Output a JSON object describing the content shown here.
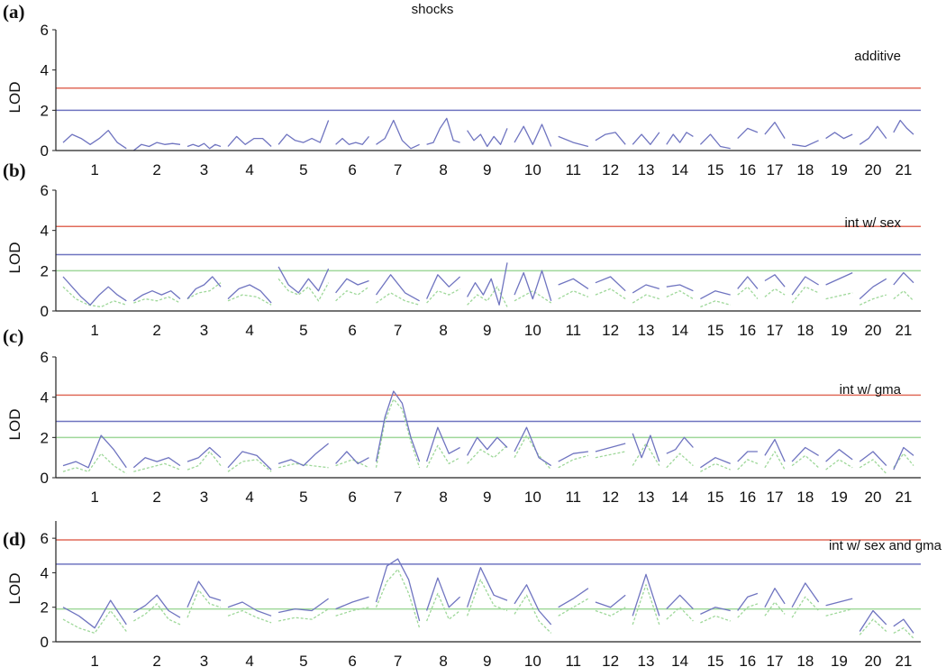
{
  "title": "shocks",
  "colors": {
    "red": "#e06b5a",
    "blue": "#6f74c0",
    "green": "#9fd89a",
    "axis": "#222222"
  },
  "chart_data": [
    {
      "type": "line",
      "panel_label": "(a)",
      "annotation": "additive",
      "ylabel": "LOD",
      "ylim": [
        0,
        6
      ],
      "yticks": [
        "0",
        "2",
        "4",
        "6"
      ],
      "chromosomes": [
        "1",
        "2",
        "3",
        "4",
        "5",
        "6",
        "7",
        "8",
        "9",
        "10",
        "11",
        "12",
        "13",
        "14",
        "15",
        "16",
        "17",
        "18",
        "19",
        "20",
        "21"
      ],
      "thresholds": [
        {
          "color": "red",
          "value": 3.1
        },
        {
          "color": "blue",
          "value": 2.0
        }
      ],
      "series": [
        {
          "color": "blue",
          "style": "solid",
          "segments": [
            [
              0.4,
              0.8,
              0.6,
              0.3,
              0.6,
              1.0,
              0.4,
              0.1
            ],
            [
              0.0,
              0.3,
              0.2,
              0.4,
              0.3,
              0.35,
              0.3
            ],
            [
              0.2,
              0.3,
              0.2,
              0.35,
              0.1,
              0.3,
              0.2
            ],
            [
              0.2,
              0.7,
              0.3,
              0.6,
              0.6,
              0.2
            ],
            [
              0.3,
              0.8,
              0.5,
              0.4,
              0.6,
              0.4,
              1.5
            ],
            [
              0.3,
              0.6,
              0.3,
              0.4,
              0.3,
              0.7
            ],
            [
              0.3,
              0.6,
              1.5,
              0.5,
              0.1,
              0.3
            ],
            [
              0.3,
              0.4,
              1.1,
              1.6,
              0.5,
              0.4
            ],
            [
              1.0,
              0.5,
              0.8,
              0.2,
              0.7,
              0.3,
              1.1
            ],
            [
              0.4,
              1.2,
              0.3,
              1.3,
              0.2
            ],
            [
              0.7,
              0.4,
              0.2
            ],
            [
              0.5,
              0.8,
              0.9,
              0.3
            ],
            [
              0.3,
              0.8,
              0.3,
              0.9
            ],
            [
              0.3,
              0.8,
              0.4,
              0.9,
              0.7
            ],
            [
              0.3,
              0.8,
              0.2,
              0.1
            ],
            [
              0.6,
              1.1,
              0.9
            ],
            [
              0.8,
              1.4,
              0.6
            ],
            [
              0.3,
              0.2,
              0.5
            ],
            [
              0.6,
              0.9,
              0.6,
              0.8
            ],
            [
              0.3,
              0.6,
              1.2,
              0.6
            ],
            [
              0.9,
              1.5,
              1.1,
              0.8
            ]
          ]
        }
      ]
    },
    {
      "type": "line",
      "panel_label": "(b)",
      "annotation": "int w/ sex",
      "ylabel": "LOD",
      "ylim": [
        0,
        6
      ],
      "yticks": [
        "0",
        "2",
        "4",
        "6"
      ],
      "chromosomes": [
        "1",
        "2",
        "3",
        "4",
        "5",
        "6",
        "7",
        "8",
        "9",
        "10",
        "11",
        "12",
        "13",
        "14",
        "15",
        "16",
        "17",
        "18",
        "19",
        "20",
        "21"
      ],
      "thresholds": [
        {
          "color": "red",
          "value": 4.2
        },
        {
          "color": "blue",
          "value": 2.8
        },
        {
          "color": "green",
          "value": 2.0
        }
      ],
      "series": [
        {
          "color": "green",
          "style": "dash",
          "segments": [
            [
              1.2,
              0.6,
              0.3,
              0.2,
              0.5,
              0.3
            ],
            [
              0.4,
              0.6,
              0.5,
              0.7,
              0.4
            ],
            [
              0.6,
              0.9,
              1.0,
              1.4
            ],
            [
              0.5,
              0.8,
              0.7,
              0.3
            ],
            [
              1.6,
              1.0,
              0.8,
              1.2,
              0.5,
              1.4
            ],
            [
              0.5,
              1.0,
              0.8,
              1.2
            ],
            [
              0.4,
              0.9,
              0.5,
              0.3
            ],
            [
              0.4,
              1.0,
              0.8,
              1.1
            ],
            [
              0.3,
              0.8,
              0.5,
              1.2,
              0.2
            ],
            [
              0.5,
              1.0,
              0.4
            ],
            [
              0.6,
              1.0,
              0.7
            ],
            [
              0.8,
              1.1,
              0.6
            ],
            [
              0.4,
              0.8,
              0.6
            ],
            [
              0.7,
              1.0,
              0.6
            ],
            [
              0.2,
              0.5,
              0.3
            ],
            [
              0.8,
              1.2,
              0.6
            ],
            [
              0.7,
              1.1,
              0.8
            ],
            [
              0.4,
              1.2,
              0.9
            ],
            [
              0.6,
              0.9
            ],
            [
              0.3,
              0.6,
              0.8
            ],
            [
              0.6,
              1.0,
              0.5
            ]
          ]
        },
        {
          "color": "blue",
          "style": "solid",
          "segments": [
            [
              1.7,
              1.2,
              0.7,
              0.3,
              0.8,
              1.2,
              0.8,
              0.5
            ],
            [
              0.5,
              0.8,
              1.0,
              0.8,
              1.0,
              0.6
            ],
            [
              0.6,
              1.1,
              1.3,
              1.7,
              1.2
            ],
            [
              0.6,
              1.1,
              1.3,
              1.0,
              0.4
            ],
            [
              2.2,
              1.3,
              0.9,
              1.6,
              1.0,
              2.1
            ],
            [
              0.9,
              1.6,
              1.3,
              1.5
            ],
            [
              0.8,
              1.8,
              0.9,
              0.5
            ],
            [
              0.6,
              1.8,
              1.2,
              1.7
            ],
            [
              0.7,
              1.4,
              0.8,
              1.6,
              0.3,
              2.4
            ],
            [
              0.8,
              1.9,
              0.6,
              2.0,
              0.5
            ],
            [
              1.3,
              1.6,
              1.1
            ],
            [
              1.4,
              1.7,
              1.0
            ],
            [
              0.9,
              1.3,
              1.1
            ],
            [
              1.2,
              1.3,
              1.0
            ],
            [
              0.6,
              1.0,
              0.8
            ],
            [
              1.1,
              1.7,
              1.1
            ],
            [
              1.5,
              1.8,
              1.2
            ],
            [
              0.8,
              1.7,
              1.3
            ],
            [
              1.3,
              1.9
            ],
            [
              0.6,
              1.2,
              1.6
            ],
            [
              1.3,
              1.9,
              1.4
            ]
          ]
        }
      ]
    },
    {
      "type": "line",
      "panel_label": "(c)",
      "annotation": "int w/ gma",
      "ylabel": "LOD",
      "ylim": [
        0,
        6
      ],
      "yticks": [
        "0",
        "2",
        "4",
        "6"
      ],
      "chromosomes": [
        "1",
        "2",
        "3",
        "4",
        "5",
        "6",
        "7",
        "8",
        "9",
        "10",
        "11",
        "12",
        "13",
        "14",
        "15",
        "16",
        "17",
        "18",
        "19",
        "20",
        "21"
      ],
      "thresholds": [
        {
          "color": "red",
          "value": 4.1
        },
        {
          "color": "blue",
          "value": 2.8
        },
        {
          "color": "green",
          "value": 2.0
        }
      ],
      "series": [
        {
          "color": "green",
          "style": "dash",
          "segments": [
            [
              0.3,
              0.5,
              0.3,
              1.2,
              0.6,
              0.2
            ],
            [
              0.3,
              0.5,
              0.7,
              0.4
            ],
            [
              0.4,
              0.6,
              1.3,
              0.6
            ],
            [
              0.3,
              0.8,
              0.9,
              0.3
            ],
            [
              0.5,
              0.7,
              0.6,
              0.5
            ],
            [
              0.6,
              0.9,
              0.5
            ],
            [
              0.5,
              2.8,
              3.9,
              3.4,
              1.8,
              0.5
            ],
            [
              0.5,
              1.6,
              0.7,
              1.0
            ],
            [
              0.7,
              1.4,
              1.0,
              1.6
            ],
            [
              1.0,
              2.1,
              1.1,
              0.4
            ],
            [
              0.5,
              0.9,
              1.1
            ],
            [
              1.0,
              1.3
            ],
            [
              0.6,
              1.7,
              0.6
            ],
            [
              0.5,
              1.2,
              0.6
            ],
            [
              0.3,
              0.7,
              0.4
            ],
            [
              0.4,
              0.9,
              0.7
            ],
            [
              0.5,
              1.3,
              0.4
            ],
            [
              0.6,
              1.1,
              0.5
            ],
            [
              0.4,
              0.9,
              0.5
            ],
            [
              0.5,
              0.9,
              0.2
            ],
            [
              0.5,
              1.2,
              0.6
            ]
          ]
        },
        {
          "color": "blue",
          "style": "solid",
          "segments": [
            [
              0.6,
              0.8,
              0.5,
              2.1,
              1.4,
              0.5
            ],
            [
              0.5,
              1.0,
              0.8,
              1.0,
              0.6
            ],
            [
              0.8,
              1.0,
              1.5,
              1.0
            ],
            [
              0.5,
              1.3,
              1.1,
              0.4
            ],
            [
              0.7,
              0.9,
              0.6,
              1.2,
              1.7
            ],
            [
              0.7,
              1.3,
              0.7,
              1.0
            ],
            [
              0.8,
              3.0,
              4.3,
              3.7,
              2.0,
              0.8
            ],
            [
              0.8,
              2.5,
              1.2,
              1.5
            ],
            [
              1.1,
              2.0,
              1.4,
              2.0,
              1.5
            ],
            [
              1.3,
              2.5,
              1.0,
              0.6
            ],
            [
              0.8,
              1.2,
              1.3
            ],
            [
              1.3,
              1.5,
              1.7
            ],
            [
              2.2,
              1.0,
              2.1,
              0.8
            ],
            [
              1.2,
              1.4,
              2.0,
              1.5
            ],
            [
              0.5,
              1.0,
              0.7
            ],
            [
              0.8,
              1.3,
              1.3
            ],
            [
              1.1,
              1.9,
              0.8
            ],
            [
              0.8,
              1.5,
              1.1
            ],
            [
              0.8,
              1.4,
              0.9
            ],
            [
              0.8,
              1.3,
              0.6
            ],
            [
              0.4,
              1.5,
              1.1
            ]
          ]
        }
      ]
    },
    {
      "type": "line",
      "panel_label": "(d)",
      "annotation": "int w/ sex and gma",
      "ylabel": "LOD",
      "ylim": [
        0,
        7
      ],
      "yticks": [
        "0",
        "2",
        "4",
        "6"
      ],
      "chromosomes": [
        "1",
        "2",
        "3",
        "4",
        "5",
        "6",
        "7",
        "8",
        "9",
        "10",
        "11",
        "12",
        "13",
        "14",
        "15",
        "16",
        "17",
        "18",
        "19",
        "20",
        "21"
      ],
      "thresholds": [
        {
          "color": "red",
          "value": 5.9
        },
        {
          "color": "blue",
          "value": 4.5
        },
        {
          "color": "green",
          "value": 1.9
        }
      ],
      "series": [
        {
          "color": "green",
          "style": "dash",
          "segments": [
            [
              1.3,
              0.8,
              0.5,
              1.8,
              0.6
            ],
            [
              1.2,
              1.6,
              2.2,
              1.3,
              1.0
            ],
            [
              1.4,
              3.0,
              2.2,
              2.0
            ],
            [
              1.5,
              1.8,
              1.4,
              1.1
            ],
            [
              1.2,
              1.4,
              1.3,
              1.9
            ],
            [
              1.5,
              1.8,
              2.0
            ],
            [
              2.0,
              3.5,
              4.2,
              2.8,
              0.8
            ],
            [
              1.2,
              2.8,
              1.3,
              1.8
            ],
            [
              1.5,
              3.6,
              2.1,
              1.8
            ],
            [
              1.6,
              2.7,
              1.2,
              0.5
            ],
            [
              1.5,
              2.0,
              2.5
            ],
            [
              1.8,
              1.5,
              2.0
            ],
            [
              1.0,
              3.3,
              1.0
            ],
            [
              1.3,
              2.0,
              1.2
            ],
            [
              1.1,
              1.5,
              1.2
            ],
            [
              1.4,
              2.0,
              2.2
            ],
            [
              1.5,
              2.3,
              1.6
            ],
            [
              1.4,
              2.6,
              1.8
            ],
            [
              1.5,
              1.9
            ],
            [
              0.4,
              1.3,
              0.6
            ],
            [
              0.5,
              0.8,
              0.2
            ]
          ]
        },
        {
          "color": "blue",
          "style": "solid",
          "segments": [
            [
              2.0,
              1.5,
              0.8,
              2.4,
              1.0
            ],
            [
              1.7,
              2.1,
              2.7,
              1.8,
              1.4
            ],
            [
              2.0,
              3.5,
              2.6,
              2.4
            ],
            [
              2.0,
              2.3,
              1.8,
              1.5
            ],
            [
              1.7,
              1.9,
              1.8,
              2.5
            ],
            [
              1.9,
              2.3,
              2.6
            ],
            [
              2.3,
              4.4,
              4.8,
              3.6,
              1.2
            ],
            [
              1.8,
              3.7,
              2.0,
              2.6
            ],
            [
              2.0,
              4.3,
              2.7,
              2.4
            ],
            [
              2.2,
              3.3,
              1.8,
              1.0
            ],
            [
              2.0,
              2.5,
              3.1
            ],
            [
              2.3,
              2.0,
              2.7
            ],
            [
              1.5,
              3.9,
              1.5
            ],
            [
              1.9,
              2.7,
              1.9
            ],
            [
              1.6,
              2.0,
              1.8
            ],
            [
              1.8,
              2.6,
              2.8
            ],
            [
              2.0,
              3.1,
              2.2
            ],
            [
              2.0,
              3.4,
              2.3
            ],
            [
              2.1,
              2.5
            ],
            [
              0.6,
              1.8,
              1.0
            ],
            [
              0.9,
              1.3,
              0.5
            ]
          ]
        }
      ]
    }
  ]
}
